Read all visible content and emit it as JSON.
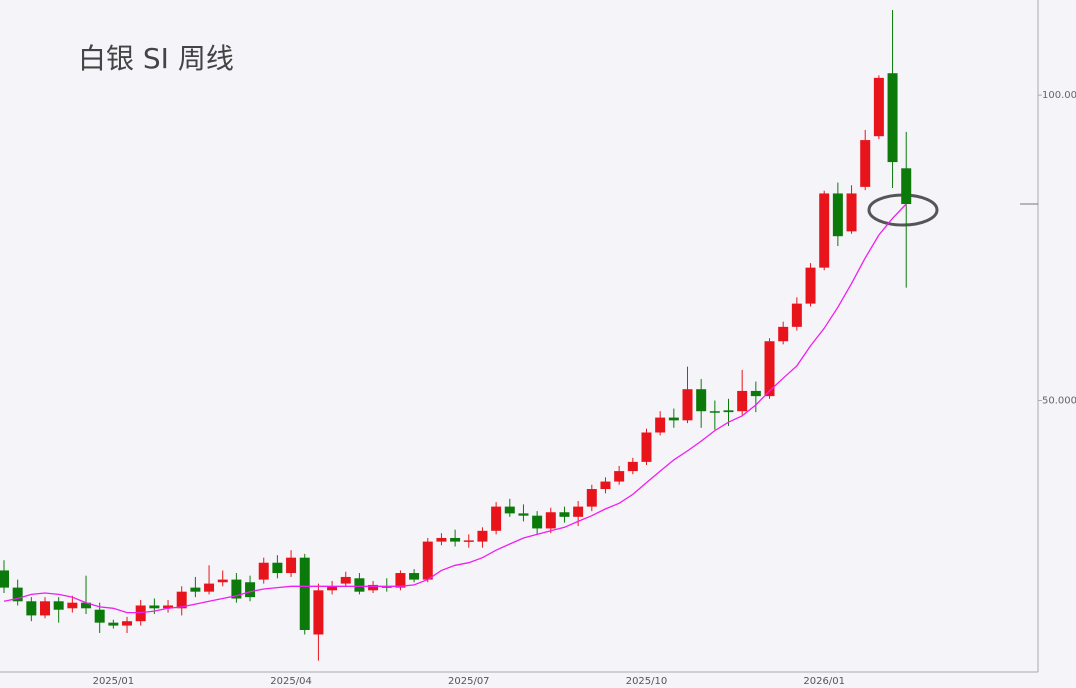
{
  "chart_data": {
    "type": "candlestick",
    "title": "白银 SI 周线",
    "categories": [
      null,
      null,
      null,
      null,
      null,
      null,
      null,
      null,
      "2025/01",
      null,
      null,
      null,
      null,
      null,
      null,
      null,
      null,
      null,
      null,
      null,
      null,
      "2025/04",
      null,
      null,
      null,
      null,
      null,
      null,
      null,
      null,
      null,
      null,
      null,
      null,
      "2025/07",
      null,
      null,
      null,
      null,
      null,
      null,
      null,
      null,
      null,
      null,
      null,
      null,
      "2025/10",
      null,
      null,
      null,
      null,
      null,
      null,
      null,
      null,
      null,
      null,
      null,
      null,
      "2026/01",
      null,
      null,
      null,
      null,
      null,
      null
    ],
    "open": [
      34.0,
      32.7,
      31.7,
      30.7,
      31.7,
      31.2,
      31.6,
      31.1,
      30.2,
      30.0,
      30.3,
      31.4,
      31.2,
      31.2,
      32.7,
      32.4,
      33.1,
      33.3,
      33.1,
      33.3,
      34.6,
      33.8,
      35.0,
      29.4,
      32.5,
      33.0,
      33.4,
      32.5,
      32.8,
      32.7,
      33.8,
      33.3,
      36.3,
      36.6,
      36.3,
      36.3,
      37.2,
      39.3,
      38.7,
      38.5,
      37.4,
      38.8,
      38.4,
      39.3,
      40.9,
      41.6,
      42.6,
      43.5,
      46.5,
      48.1,
      47.8,
      51.3,
      48.8,
      48.9,
      48.8,
      51.1,
      50.5,
      57.2,
      59.1,
      62.3,
      67.6,
      80.0,
      73.4,
      81.2,
      91.1,
      105.1,
      84.7
    ],
    "high": [
      34.8,
      33.3,
      32.0,
      32.0,
      32.0,
      32.1,
      33.6,
      31.6,
      30.4,
      30.6,
      31.8,
      31.9,
      31.8,
      32.8,
      33.5,
      34.4,
      34.0,
      33.8,
      33.6,
      35.0,
      35.2,
      35.6,
      35.3,
      33.0,
      33.2,
      33.9,
      33.8,
      33.2,
      33.4,
      34.0,
      34.1,
      36.6,
      37.0,
      37.3,
      36.9,
      37.5,
      39.7,
      40.0,
      39.5,
      38.9,
      39.2,
      39.3,
      39.8,
      41.3,
      42.0,
      43.1,
      43.9,
      46.9,
      48.8,
      49.1,
      54.0,
      52.5,
      50.0,
      50.2,
      53.6,
      52.2,
      57.6,
      59.8,
      63.2,
      68.3,
      80.5,
      82.0,
      81.5,
      92.4,
      104.6,
      121.3,
      92.0
    ],
    "low": [
      32.3,
      31.4,
      30.3,
      30.5,
      30.2,
      30.9,
      30.8,
      29.5,
      29.8,
      29.5,
      30.0,
      30.8,
      30.9,
      30.7,
      32.0,
      32.2,
      32.8,
      31.6,
      31.7,
      33.0,
      33.4,
      33.5,
      29.4,
      27.7,
      32.2,
      32.8,
      32.2,
      32.3,
      32.4,
      32.5,
      33.1,
      33.1,
      36.0,
      35.9,
      35.8,
      35.8,
      36.9,
      38.4,
      38.0,
      36.9,
      37.0,
      37.9,
      37.6,
      38.9,
      40.5,
      41.3,
      42.3,
      43.2,
      46.2,
      47.0,
      47.5,
      47.0,
      46.8,
      47.2,
      48.4,
      48.7,
      50.2,
      56.8,
      58.6,
      61.9,
      67.2,
      71.0,
      73.0,
      80.6,
      90.5,
      81.0,
      64.6
    ],
    "close": [
      32.7,
      31.7,
      30.7,
      31.7,
      31.1,
      31.6,
      31.2,
      30.2,
      30.0,
      30.3,
      31.4,
      31.2,
      31.4,
      32.4,
      32.4,
      33.0,
      33.3,
      31.9,
      32.0,
      34.6,
      33.8,
      35.0,
      29.7,
      32.5,
      32.8,
      33.5,
      32.4,
      32.9,
      32.7,
      33.8,
      33.3,
      36.3,
      36.6,
      36.3,
      36.4,
      37.2,
      39.3,
      38.7,
      38.5,
      37.4,
      38.8,
      38.4,
      39.3,
      40.9,
      41.6,
      42.6,
      43.5,
      46.5,
      48.1,
      47.8,
      51.3,
      48.8,
      48.7,
      48.7,
      51.1,
      50.5,
      57.2,
      59.1,
      62.3,
      67.6,
      80.0,
      72.6,
      80.0,
      90.3,
      104.0,
      85.9,
      78.1
    ],
    "up_color": "#e8141b",
    "down_color": "#0b7a0b",
    "ma": {
      "color": "#f01ef0",
      "values": [
        31.7,
        31.9,
        32.2,
        32.3,
        32.2,
        32.0,
        31.6,
        31.3,
        31.2,
        30.9,
        30.9,
        31.0,
        31.2,
        31.3,
        31.5,
        31.7,
        31.9,
        32.1,
        32.4,
        32.6,
        32.7,
        32.8,
        32.8,
        32.8,
        32.8,
        32.8,
        32.8,
        32.8,
        32.8,
        32.8,
        32.9,
        33.3,
        34.0,
        34.4,
        34.6,
        35.0,
        35.6,
        36.1,
        36.6,
        36.9,
        37.2,
        37.5,
        38.0,
        38.5,
        39.1,
        39.6,
        40.4,
        41.5,
        42.6,
        43.7,
        44.6,
        45.6,
        46.7,
        47.6,
        48.3,
        49.5,
        51.1,
        52.6,
        54.1,
        56.6,
        58.9,
        61.8,
        65.2,
        69.1,
        72.8,
        75.6,
        78.1
      ]
    },
    "log_scale": true,
    "ylim": [
      27.0,
      124.1
    ],
    "yticks": [
      {
        "value": 50,
        "label": "50.000"
      },
      {
        "value": 100,
        "label": "100.000"
      }
    ]
  }
}
